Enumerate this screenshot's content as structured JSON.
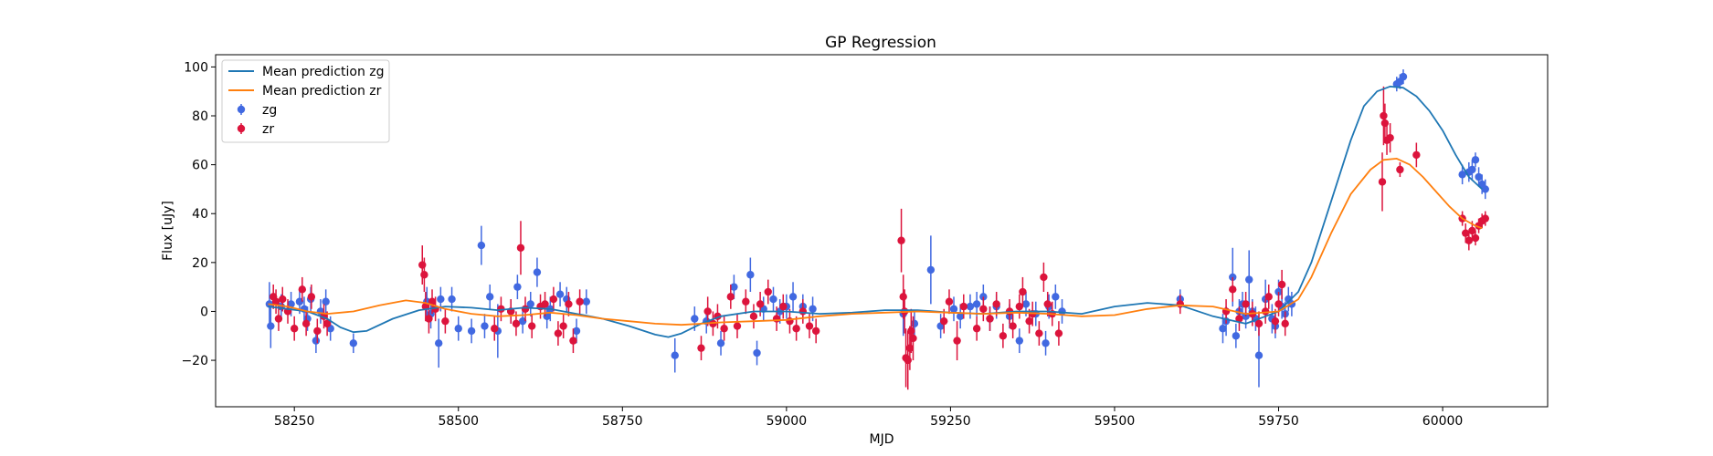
{
  "chart_data": {
    "type": "scatter",
    "title": "GP Regression",
    "xlabel": "MJD",
    "ylabel": "Flux [uJy]",
    "xlim": [
      58130,
      60160
    ],
    "ylim": [
      -39,
      105
    ],
    "xticks": [
      58250,
      58500,
      58750,
      59000,
      59250,
      59500,
      59750,
      60000
    ],
    "yticks": [
      -20,
      0,
      20,
      40,
      60,
      80,
      100
    ],
    "legend_position": "upper left",
    "lines": [
      {
        "name": "Mean prediction zg",
        "color": "#1f77b4",
        "x": [
          58210,
          58240,
          58270,
          58300,
          58320,
          58340,
          58360,
          58400,
          58440,
          58480,
          58520,
          58560,
          58600,
          58640,
          58680,
          58720,
          58760,
          58800,
          58820,
          58840,
          58870,
          58900,
          58950,
          59000,
          59050,
          59100,
          59150,
          59200,
          59250,
          59300,
          59350,
          59400,
          59450,
          59500,
          59550,
          59600,
          59650,
          59700,
          59750,
          59780,
          59800,
          59830,
          59860,
          59880,
          59900,
          59920,
          59940,
          59960,
          59980,
          60000,
          60020,
          60040,
          60060
        ],
        "y": [
          2,
          1,
          0,
          -3,
          -6.5,
          -8.5,
          -8,
          -3,
          0.5,
          2,
          1.5,
          0.5,
          1.5,
          1,
          -1,
          -3,
          -6,
          -9.5,
          -10.5,
          -9,
          -5,
          -2,
          0,
          0,
          -1,
          -0.5,
          0.5,
          0.5,
          -0.5,
          -1,
          0,
          0,
          -1,
          2,
          3.5,
          2.5,
          -2,
          -5,
          0,
          8,
          20,
          45,
          70,
          84,
          90,
          92,
          91.5,
          88,
          82,
          74,
          64,
          55,
          50
        ]
      },
      {
        "name": "Mean prediction zr",
        "color": "#ff7f0e",
        "x": [
          58210,
          58240,
          58270,
          58300,
          58340,
          58380,
          58420,
          58450,
          58480,
          58520,
          58560,
          58600,
          58640,
          58680,
          58720,
          58760,
          58800,
          58840,
          58870,
          58900,
          58950,
          59000,
          59050,
          59100,
          59150,
          59200,
          59250,
          59300,
          59350,
          59400,
          59450,
          59500,
          59550,
          59600,
          59650,
          59700,
          59750,
          59780,
          59800,
          59830,
          59860,
          59890,
          59910,
          59930,
          59950,
          59970,
          59990,
          60010,
          60030,
          60050,
          60060
        ],
        "y": [
          3,
          2,
          0,
          -1,
          0,
          2.5,
          4.5,
          3.5,
          1,
          -1,
          -2,
          -1.5,
          -0.5,
          -1.5,
          -3,
          -4,
          -5,
          -5.5,
          -5,
          -4.5,
          -4,
          -3.5,
          -2,
          -1,
          -0.5,
          0,
          -0.5,
          -1,
          -0.5,
          -1,
          -2,
          -1.5,
          1,
          2.5,
          2,
          -1,
          0,
          5,
          14,
          32,
          48,
          58,
          62,
          62.5,
          60,
          55,
          49,
          43,
          38,
          35,
          34
        ]
      }
    ],
    "series": [
      {
        "name": "zg",
        "color": "#4169e1",
        "x": [
          58212,
          58214,
          58230,
          58245,
          58258,
          58265,
          58270,
          58275,
          58283,
          58290,
          58298,
          58305,
          58340,
          58452,
          58458,
          58470,
          58473,
          58490,
          58500,
          58520,
          58535,
          58540,
          58548,
          58560,
          58580,
          58590,
          58598,
          58610,
          58620,
          58635,
          58640,
          58655,
          58665,
          58680,
          58695,
          58830,
          58860,
          58878,
          58900,
          58920,
          58945,
          58955,
          58965,
          58980,
          58990,
          59000,
          59010,
          59025,
          59040,
          59178,
          59195,
          59220,
          59235,
          59255,
          59265,
          59280,
          59290,
          59300,
          59310,
          59320,
          59340,
          59355,
          59365,
          59380,
          59395,
          59400,
          59410,
          59420,
          59600,
          59665,
          59670,
          59680,
          59685,
          59690,
          59695,
          59700,
          59705,
          59710,
          59715,
          59720,
          59730,
          59740,
          59745,
          59750,
          59755,
          59760,
          59765,
          59770,
          59930,
          59935,
          59940,
          60030,
          60040,
          60045,
          60050,
          60055,
          60060,
          60065
        ],
        "y": [
          3,
          -6,
          2,
          3,
          4,
          1,
          -3,
          5,
          -12,
          0,
          4,
          -7,
          -13,
          4,
          -1,
          -13,
          5,
          5,
          -7,
          -8,
          27,
          -6,
          6,
          -8,
          0,
          10,
          -4,
          3,
          16,
          -2,
          1,
          7,
          5,
          -8,
          4,
          -18,
          -3,
          -4,
          -13,
          10,
          15,
          -17,
          1,
          5,
          0,
          2,
          6,
          2,
          1,
          -1,
          -5,
          17,
          -6,
          1,
          -2,
          2,
          3,
          6,
          -3,
          2,
          -2,
          -12,
          3,
          -1,
          -13,
          2,
          6,
          0,
          5,
          -7,
          -4,
          14,
          -10,
          0,
          3,
          -2,
          13,
          0,
          -3,
          -18,
          5,
          -3,
          -6,
          8,
          2,
          -1,
          5,
          3,
          93,
          94,
          96,
          56,
          57,
          58,
          62,
          55,
          52,
          50
        ],
        "err": [
          9,
          9,
          5,
          5,
          5,
          5,
          5,
          5,
          5,
          5,
          5,
          5,
          4,
          6,
          6,
          10,
          5,
          5,
          5,
          5,
          8,
          5,
          5,
          11,
          5,
          5,
          5,
          5,
          6,
          5,
          5,
          5,
          5,
          5,
          5,
          7,
          5,
          5,
          5,
          5,
          7,
          5,
          5,
          5,
          5,
          5,
          6,
          5,
          5,
          9,
          5,
          14,
          5,
          5,
          5,
          5,
          5,
          5,
          5,
          5,
          5,
          5,
          5,
          5,
          5,
          5,
          5,
          5,
          4,
          6,
          6,
          12,
          5,
          5,
          5,
          5,
          12,
          5,
          5,
          13,
          8,
          6,
          5,
          5,
          5,
          5,
          5,
          5,
          3,
          3,
          3,
          4,
          4,
          4,
          3,
          4,
          4,
          4
        ]
      },
      {
        "name": "zr",
        "color": "#dc143c",
        "x": [
          58218,
          58222,
          58226,
          58232,
          58240,
          58250,
          58262,
          58268,
          58276,
          58285,
          58295,
          58300,
          58445,
          58448,
          58450,
          58455,
          58460,
          58465,
          58480,
          58555,
          58565,
          58580,
          58588,
          58595,
          58602,
          58612,
          58625,
          58632,
          58645,
          58652,
          58660,
          58668,
          58675,
          58685,
          58870,
          58880,
          58888,
          58895,
          58905,
          58915,
          58925,
          58938,
          58950,
          58960,
          58972,
          58985,
          58995,
          59005,
          59015,
          59025,
          59035,
          59045,
          59175,
          59178,
          59180,
          59182,
          59185,
          59188,
          59190,
          59193,
          59240,
          59248,
          59260,
          59270,
          59290,
          59300,
          59310,
          59320,
          59330,
          59340,
          59345,
          59355,
          59360,
          59370,
          59375,
          59385,
          59392,
          59398,
          59405,
          59415,
          59600,
          59670,
          59680,
          59690,
          59700,
          59710,
          59720,
          59730,
          59735,
          59745,
          59750,
          59755,
          59760,
          59908,
          59910,
          59912,
          59915,
          59920,
          59935,
          59960,
          60030,
          60035,
          60040,
          60045,
          60050,
          60055,
          60060,
          60065
        ],
        "y": [
          6,
          4,
          -3,
          5,
          0,
          -7,
          9,
          -5,
          6,
          -8,
          -2,
          -5,
          19,
          15,
          2,
          -3,
          4,
          1,
          -4,
          -7,
          1,
          0,
          -5,
          26,
          1,
          -6,
          2,
          3,
          5,
          -9,
          -6,
          3,
          -12,
          4,
          -15,
          0,
          -5,
          -2,
          -7,
          6,
          -6,
          4,
          -2,
          3,
          8,
          -3,
          2,
          -4,
          -7,
          0,
          -6,
          -8,
          29,
          6,
          0,
          -19,
          -20,
          -15,
          -8,
          -11,
          -4,
          4,
          -12,
          2,
          -7,
          1,
          -3,
          3,
          -10,
          0,
          -6,
          2,
          8,
          -4,
          -1,
          -9,
          14,
          3,
          -1,
          -9,
          3,
          0,
          9,
          -3,
          3,
          -1,
          -5,
          0,
          6,
          -4,
          3,
          11,
          -5,
          53,
          80,
          77,
          70,
          71,
          58,
          64,
          38,
          32,
          29,
          33,
          30,
          35,
          37,
          38
        ],
        "err": [
          5,
          5,
          5,
          5,
          5,
          5,
          5,
          5,
          5,
          5,
          5,
          5,
          8,
          7,
          6,
          6,
          5,
          5,
          5,
          5,
          5,
          5,
          5,
          11,
          5,
          5,
          5,
          5,
          5,
          5,
          5,
          5,
          5,
          5,
          5,
          6,
          5,
          5,
          5,
          5,
          5,
          5,
          5,
          5,
          5,
          5,
          5,
          5,
          5,
          5,
          5,
          5,
          13,
          9,
          9,
          12,
          12,
          9,
          9,
          9,
          5,
          5,
          8,
          5,
          5,
          5,
          5,
          5,
          5,
          5,
          5,
          5,
          6,
          5,
          5,
          5,
          6,
          5,
          5,
          5,
          4,
          5,
          5,
          5,
          5,
          5,
          5,
          5,
          5,
          5,
          5,
          6,
          5,
          12,
          12,
          8,
          6,
          6,
          3,
          5,
          3,
          4,
          4,
          4,
          3,
          3,
          3,
          3
        ]
      }
    ]
  }
}
